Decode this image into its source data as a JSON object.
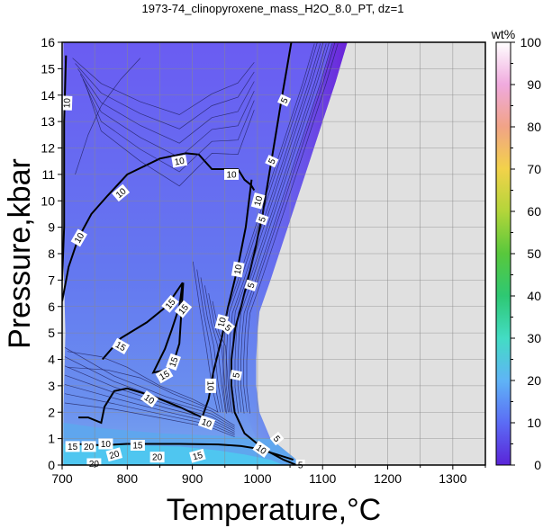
{
  "chart_data": {
    "type": "heatmap",
    "title": "1973-74_clinopyroxene_mass_H2O_8.0_PT, dz=1",
    "xlabel": "Temperature,°C",
    "ylabel": "Pressure,kbar",
    "xlim": [
      700,
      1350
    ],
    "ylim": [
      0,
      16
    ],
    "x_ticks": [
      "700",
      "800",
      "900",
      "1000",
      "1100",
      "1200",
      "1300"
    ],
    "y_ticks": [
      "0",
      "1",
      "2",
      "3",
      "4",
      "5",
      "6",
      "7",
      "8",
      "9",
      "10",
      "11",
      "12",
      "13",
      "14",
      "15",
      "16"
    ],
    "grid": true,
    "colorbar": {
      "label": "wt%",
      "range": [
        0,
        100
      ],
      "ticks": [
        "0",
        "10",
        "20",
        "30",
        "40",
        "50",
        "60",
        "70",
        "80",
        "90",
        "100"
      ],
      "colors": [
        "#5a24d8",
        "#5b6cf5",
        "#5fb4f6",
        "#43dcc4",
        "#2ec873",
        "#58c83c",
        "#b3d53a",
        "#f2d24a",
        "#f1a386",
        "#f0aade",
        "#ffffff"
      ]
    },
    "contour_levels": [
      5,
      10,
      15,
      20
    ],
    "contour_labels": [
      {
        "text": "10",
        "T": 707,
        "P": 13.7,
        "angle": -88
      },
      {
        "text": "10",
        "T": 726,
        "P": 8.6,
        "angle": -60
      },
      {
        "text": "10",
        "T": 790,
        "P": 10.3,
        "angle": -40
      },
      {
        "text": "10",
        "T": 880,
        "P": 11.5,
        "angle": -10
      },
      {
        "text": "10",
        "T": 960,
        "P": 11.0,
        "angle": 0
      },
      {
        "text": "10",
        "T": 1001,
        "P": 10.0,
        "angle": -75
      },
      {
        "text": "10",
        "T": 970,
        "P": 7.4,
        "angle": -80
      },
      {
        "text": "10",
        "T": 945,
        "P": 5.4,
        "angle": -75
      },
      {
        "text": "10",
        "T": 928,
        "P": 3.0,
        "angle": 90
      },
      {
        "text": "10",
        "T": 834,
        "P": 2.5,
        "angle": 35
      },
      {
        "text": "10",
        "T": 922,
        "P": 1.6,
        "angle": 20
      },
      {
        "text": "10",
        "T": 1006,
        "P": 0.6,
        "angle": 35
      },
      {
        "text": "10",
        "T": 767,
        "P": 0.8,
        "angle": 0
      },
      {
        "text": "5",
        "T": 1041,
        "P": 13.8,
        "angle": -65
      },
      {
        "text": "5",
        "T": 1022,
        "P": 11.5,
        "angle": -65
      },
      {
        "text": "5",
        "T": 1007,
        "P": 9.3,
        "angle": -70
      },
      {
        "text": "5",
        "T": 990,
        "P": 6.8,
        "angle": -72
      },
      {
        "text": "5",
        "T": 955,
        "P": 5.2,
        "angle": 40
      },
      {
        "text": "5",
        "T": 967,
        "P": 3.4,
        "angle": -80
      },
      {
        "text": "5",
        "T": 1030,
        "P": 1.0,
        "angle": 50
      },
      {
        "text": "5",
        "T": 1066,
        "P": 0.0,
        "angle": 0
      },
      {
        "text": "15",
        "T": 886,
        "P": 5.9,
        "angle": -50
      },
      {
        "text": "15",
        "T": 866,
        "P": 6.1,
        "angle": -50
      },
      {
        "text": "15",
        "T": 790,
        "P": 4.5,
        "angle": 30
      },
      {
        "text": "15",
        "T": 857,
        "P": 3.4,
        "angle": -30
      },
      {
        "text": "15",
        "T": 871,
        "P": 3.9,
        "angle": -70
      },
      {
        "text": "15",
        "T": 716,
        "P": 0.7,
        "angle": 0
      },
      {
        "text": "15",
        "T": 816,
        "P": 0.75,
        "angle": 0
      },
      {
        "text": "15",
        "T": 908,
        "P": 0.35,
        "angle": -15
      },
      {
        "text": "20",
        "T": 741,
        "P": 0.7,
        "angle": 0
      },
      {
        "text": "20",
        "T": 780,
        "P": 0.4,
        "angle": -15
      },
      {
        "text": "20",
        "T": 846,
        "P": 0.3,
        "angle": 0
      },
      {
        "text": "20",
        "T": 749,
        "P": 0.05,
        "angle": 0
      }
    ]
  }
}
